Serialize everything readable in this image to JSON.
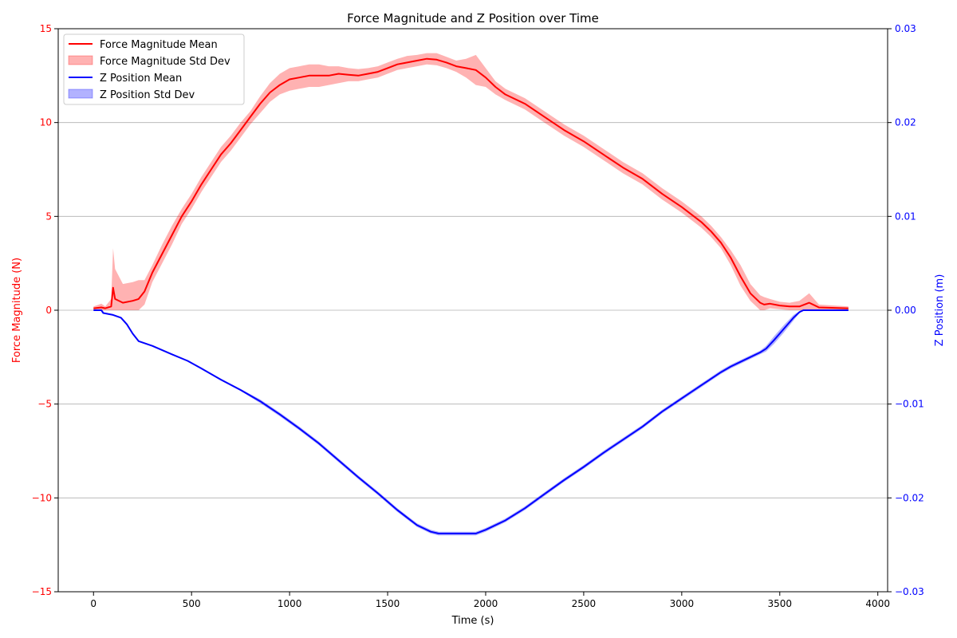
{
  "chart_data": {
    "type": "line",
    "title": "Force Magnitude and Z Position over Time",
    "xlabel": "Time (s)",
    "xlim": [
      -180,
      4050
    ],
    "xticks": [
      0,
      500,
      1000,
      1500,
      2000,
      2500,
      3000,
      3500,
      4000
    ],
    "xtick_labels": [
      "0",
      "500",
      "1000",
      "1500",
      "2000",
      "2500",
      "3000",
      "3500",
      "4000"
    ],
    "grid": "horizontal",
    "legend_position": "top-left",
    "y_left": {
      "label": "Force Magnitude (N)",
      "color": "#ff0000",
      "ylim": [
        -15,
        15
      ],
      "ticks": [
        -15,
        -10,
        -5,
        0,
        5,
        10,
        15
      ],
      "tick_labels": [
        "−15",
        "−10",
        "−5",
        "0",
        "5",
        "10",
        "15"
      ]
    },
    "y_right": {
      "label": "Z Position (m)",
      "color": "#0000ff",
      "ylim": [
        -0.03,
        0.03
      ],
      "ticks": [
        -0.03,
        -0.02,
        -0.01,
        0.0,
        0.01,
        0.02,
        0.03
      ],
      "tick_labels": [
        "−0.03",
        "−0.02",
        "−0.01",
        "0.00",
        "0.01",
        "0.02",
        "0.03"
      ]
    },
    "series": [
      {
        "name": "Force Magnitude Mean",
        "axis": "left",
        "color": "#ff0000",
        "x": [
          0,
          40,
          60,
          90,
          100,
          110,
          150,
          200,
          230,
          260,
          300,
          350,
          400,
          450,
          500,
          550,
          600,
          650,
          700,
          750,
          800,
          850,
          900,
          950,
          1000,
          1050,
          1100,
          1150,
          1200,
          1250,
          1300,
          1350,
          1400,
          1450,
          1500,
          1550,
          1600,
          1650,
          1700,
          1750,
          1800,
          1850,
          1900,
          1950,
          2000,
          2050,
          2100,
          2200,
          2300,
          2400,
          2500,
          2600,
          2700,
          2800,
          2900,
          3000,
          3100,
          3150,
          3200,
          3250,
          3300,
          3350,
          3400,
          3420,
          3450,
          3500,
          3550,
          3600,
          3650,
          3700,
          3850
        ],
        "values": [
          0.1,
          0.15,
          0.1,
          0.2,
          1.2,
          0.6,
          0.4,
          0.5,
          0.6,
          1.0,
          2.0,
          3.0,
          4.0,
          5.0,
          5.8,
          6.7,
          7.5,
          8.3,
          8.9,
          9.6,
          10.3,
          11.0,
          11.6,
          12.0,
          12.3,
          12.4,
          12.5,
          12.5,
          12.5,
          12.6,
          12.55,
          12.5,
          12.6,
          12.7,
          12.9,
          13.1,
          13.2,
          13.3,
          13.4,
          13.35,
          13.2,
          13.0,
          12.9,
          12.8,
          12.4,
          11.9,
          11.5,
          11.0,
          10.3,
          9.6,
          9.0,
          8.3,
          7.6,
          7.0,
          6.2,
          5.5,
          4.7,
          4.2,
          3.6,
          2.8,
          1.8,
          0.9,
          0.4,
          0.3,
          0.35,
          0.25,
          0.2,
          0.2,
          0.4,
          0.15,
          0.1
        ]
      },
      {
        "name": "Force Magnitude Std Dev",
        "axis": "left",
        "color": "#ff0000",
        "band": true,
        "x": [
          0,
          40,
          60,
          90,
          100,
          110,
          150,
          200,
          230,
          260,
          300,
          350,
          400,
          450,
          500,
          550,
          600,
          650,
          700,
          750,
          800,
          850,
          900,
          950,
          1000,
          1050,
          1100,
          1150,
          1200,
          1250,
          1300,
          1350,
          1400,
          1450,
          1500,
          1550,
          1600,
          1650,
          1700,
          1750,
          1800,
          1850,
          1900,
          1950,
          2000,
          2050,
          2100,
          2200,
          2300,
          2400,
          2500,
          2600,
          2700,
          2800,
          2900,
          3000,
          3100,
          3150,
          3200,
          3250,
          3300,
          3350,
          3400,
          3420,
          3450,
          3500,
          3550,
          3600,
          3650,
          3700,
          3850
        ],
        "upper": [
          0.2,
          0.35,
          0.2,
          0.6,
          3.3,
          2.2,
          1.4,
          1.5,
          1.6,
          1.6,
          2.4,
          3.5,
          4.5,
          5.4,
          6.2,
          7.1,
          7.9,
          8.7,
          9.3,
          10.0,
          10.6,
          11.4,
          12.1,
          12.6,
          12.9,
          13.0,
          13.1,
          13.1,
          13.0,
          13.0,
          12.9,
          12.85,
          12.9,
          13.0,
          13.2,
          13.4,
          13.55,
          13.6,
          13.7,
          13.7,
          13.5,
          13.3,
          13.4,
          13.6,
          12.9,
          12.2,
          11.8,
          11.3,
          10.6,
          9.9,
          9.3,
          8.6,
          7.9,
          7.3,
          6.5,
          5.8,
          5.0,
          4.5,
          3.9,
          3.2,
          2.4,
          1.4,
          0.8,
          0.7,
          0.6,
          0.45,
          0.4,
          0.5,
          0.9,
          0.3,
          0.2
        ],
        "lower": [
          0.0,
          0.0,
          0.0,
          0.0,
          0.0,
          0.0,
          0.0,
          0.0,
          0.0,
          0.3,
          1.5,
          2.5,
          3.5,
          4.6,
          5.4,
          6.3,
          7.1,
          7.9,
          8.5,
          9.2,
          9.9,
          10.5,
          11.1,
          11.5,
          11.7,
          11.8,
          11.9,
          11.9,
          12.0,
          12.1,
          12.2,
          12.2,
          12.3,
          12.4,
          12.6,
          12.8,
          12.9,
          13.0,
          13.1,
          13.05,
          12.9,
          12.7,
          12.4,
          12.0,
          11.9,
          11.5,
          11.2,
          10.7,
          10.0,
          9.3,
          8.7,
          8.0,
          7.3,
          6.7,
          5.9,
          5.2,
          4.4,
          3.9,
          3.3,
          2.4,
          1.3,
          0.5,
          0.0,
          0.0,
          0.1,
          0.05,
          0.0,
          0.0,
          0.0,
          0.0,
          0.0
        ]
      },
      {
        "name": "Z Position Mean",
        "axis": "right",
        "color": "#0000ff",
        "x": [
          0,
          40,
          50,
          100,
          140,
          170,
          200,
          230,
          300,
          400,
          480,
          550,
          650,
          750,
          850,
          950,
          1050,
          1150,
          1250,
          1350,
          1450,
          1550,
          1650,
          1720,
          1760,
          1800,
          1900,
          1950,
          2000,
          2100,
          2200,
          2300,
          2400,
          2500,
          2600,
          2700,
          2800,
          2900,
          3000,
          3100,
          3200,
          3250,
          3300,
          3400,
          3430,
          3470,
          3520,
          3570,
          3600,
          3620,
          3700,
          3850
        ],
        "values": [
          0.0,
          0.0,
          -0.0003,
          -0.0005,
          -0.0008,
          -0.0015,
          -0.0025,
          -0.0033,
          -0.0038,
          -0.0047,
          -0.0054,
          -0.0062,
          -0.0074,
          -0.0085,
          -0.0097,
          -0.0111,
          -0.0126,
          -0.0142,
          -0.016,
          -0.0178,
          -0.0195,
          -0.0213,
          -0.0229,
          -0.0236,
          -0.0238,
          -0.0238,
          -0.0238,
          -0.0238,
          -0.0234,
          -0.0224,
          -0.0211,
          -0.0196,
          -0.0181,
          -0.0167,
          -0.0152,
          -0.0138,
          -0.0124,
          -0.0108,
          -0.0094,
          -0.008,
          -0.0066,
          -0.006,
          -0.0055,
          -0.0045,
          -0.0041,
          -0.0032,
          -0.002,
          -0.0008,
          -0.0002,
          0.0,
          0.0,
          0.0
        ]
      },
      {
        "name": "Z Position Std Dev",
        "axis": "right",
        "color": "#0000ff",
        "band": true,
        "x": [
          0,
          40,
          50,
          100,
          140,
          170,
          200,
          230,
          300,
          400,
          480,
          550,
          650,
          750,
          850,
          950,
          1050,
          1150,
          1250,
          1350,
          1450,
          1550,
          1650,
          1720,
          1760,
          1800,
          1900,
          1950,
          2000,
          2100,
          2200,
          2300,
          2400,
          2500,
          2600,
          2700,
          2800,
          2900,
          3000,
          3100,
          3200,
          3250,
          3300,
          3400,
          3430,
          3470,
          3520,
          3570,
          3600,
          3620,
          3700,
          3850
        ],
        "upper": [
          0.0,
          0.0,
          -0.0003,
          -0.0005,
          -0.0008,
          -0.0015,
          -0.0025,
          -0.0033,
          -0.0038,
          -0.0047,
          -0.0054,
          -0.0061,
          -0.0073,
          -0.0084,
          -0.0095,
          -0.0109,
          -0.0124,
          -0.014,
          -0.0158,
          -0.0176,
          -0.0193,
          -0.0211,
          -0.0227,
          -0.0234,
          -0.0236,
          -0.0236,
          -0.0236,
          -0.0236,
          -0.0232,
          -0.0222,
          -0.0209,
          -0.0194,
          -0.0179,
          -0.0165,
          -0.015,
          -0.0136,
          -0.0122,
          -0.0106,
          -0.0092,
          -0.0078,
          -0.0064,
          -0.0058,
          -0.0053,
          -0.0043,
          -0.0038,
          -0.0028,
          -0.0016,
          -0.0005,
          -0.0001,
          0.0,
          0.0,
          0.0
        ],
        "lower": [
          0.0,
          0.0,
          -0.0003,
          -0.0005,
          -0.0008,
          -0.0015,
          -0.0025,
          -0.0033,
          -0.0038,
          -0.0047,
          -0.0054,
          -0.0063,
          -0.0075,
          -0.0086,
          -0.0099,
          -0.0113,
          -0.0128,
          -0.0144,
          -0.0162,
          -0.018,
          -0.0197,
          -0.0215,
          -0.0231,
          -0.0238,
          -0.024,
          -0.024,
          -0.024,
          -0.024,
          -0.0236,
          -0.0226,
          -0.0213,
          -0.0198,
          -0.0183,
          -0.0169,
          -0.0154,
          -0.014,
          -0.0126,
          -0.011,
          -0.0096,
          -0.0082,
          -0.0068,
          -0.0062,
          -0.0057,
          -0.0047,
          -0.0044,
          -0.0036,
          -0.0024,
          -0.0011,
          -0.0003,
          0.0,
          0.0,
          0.0
        ]
      }
    ]
  }
}
